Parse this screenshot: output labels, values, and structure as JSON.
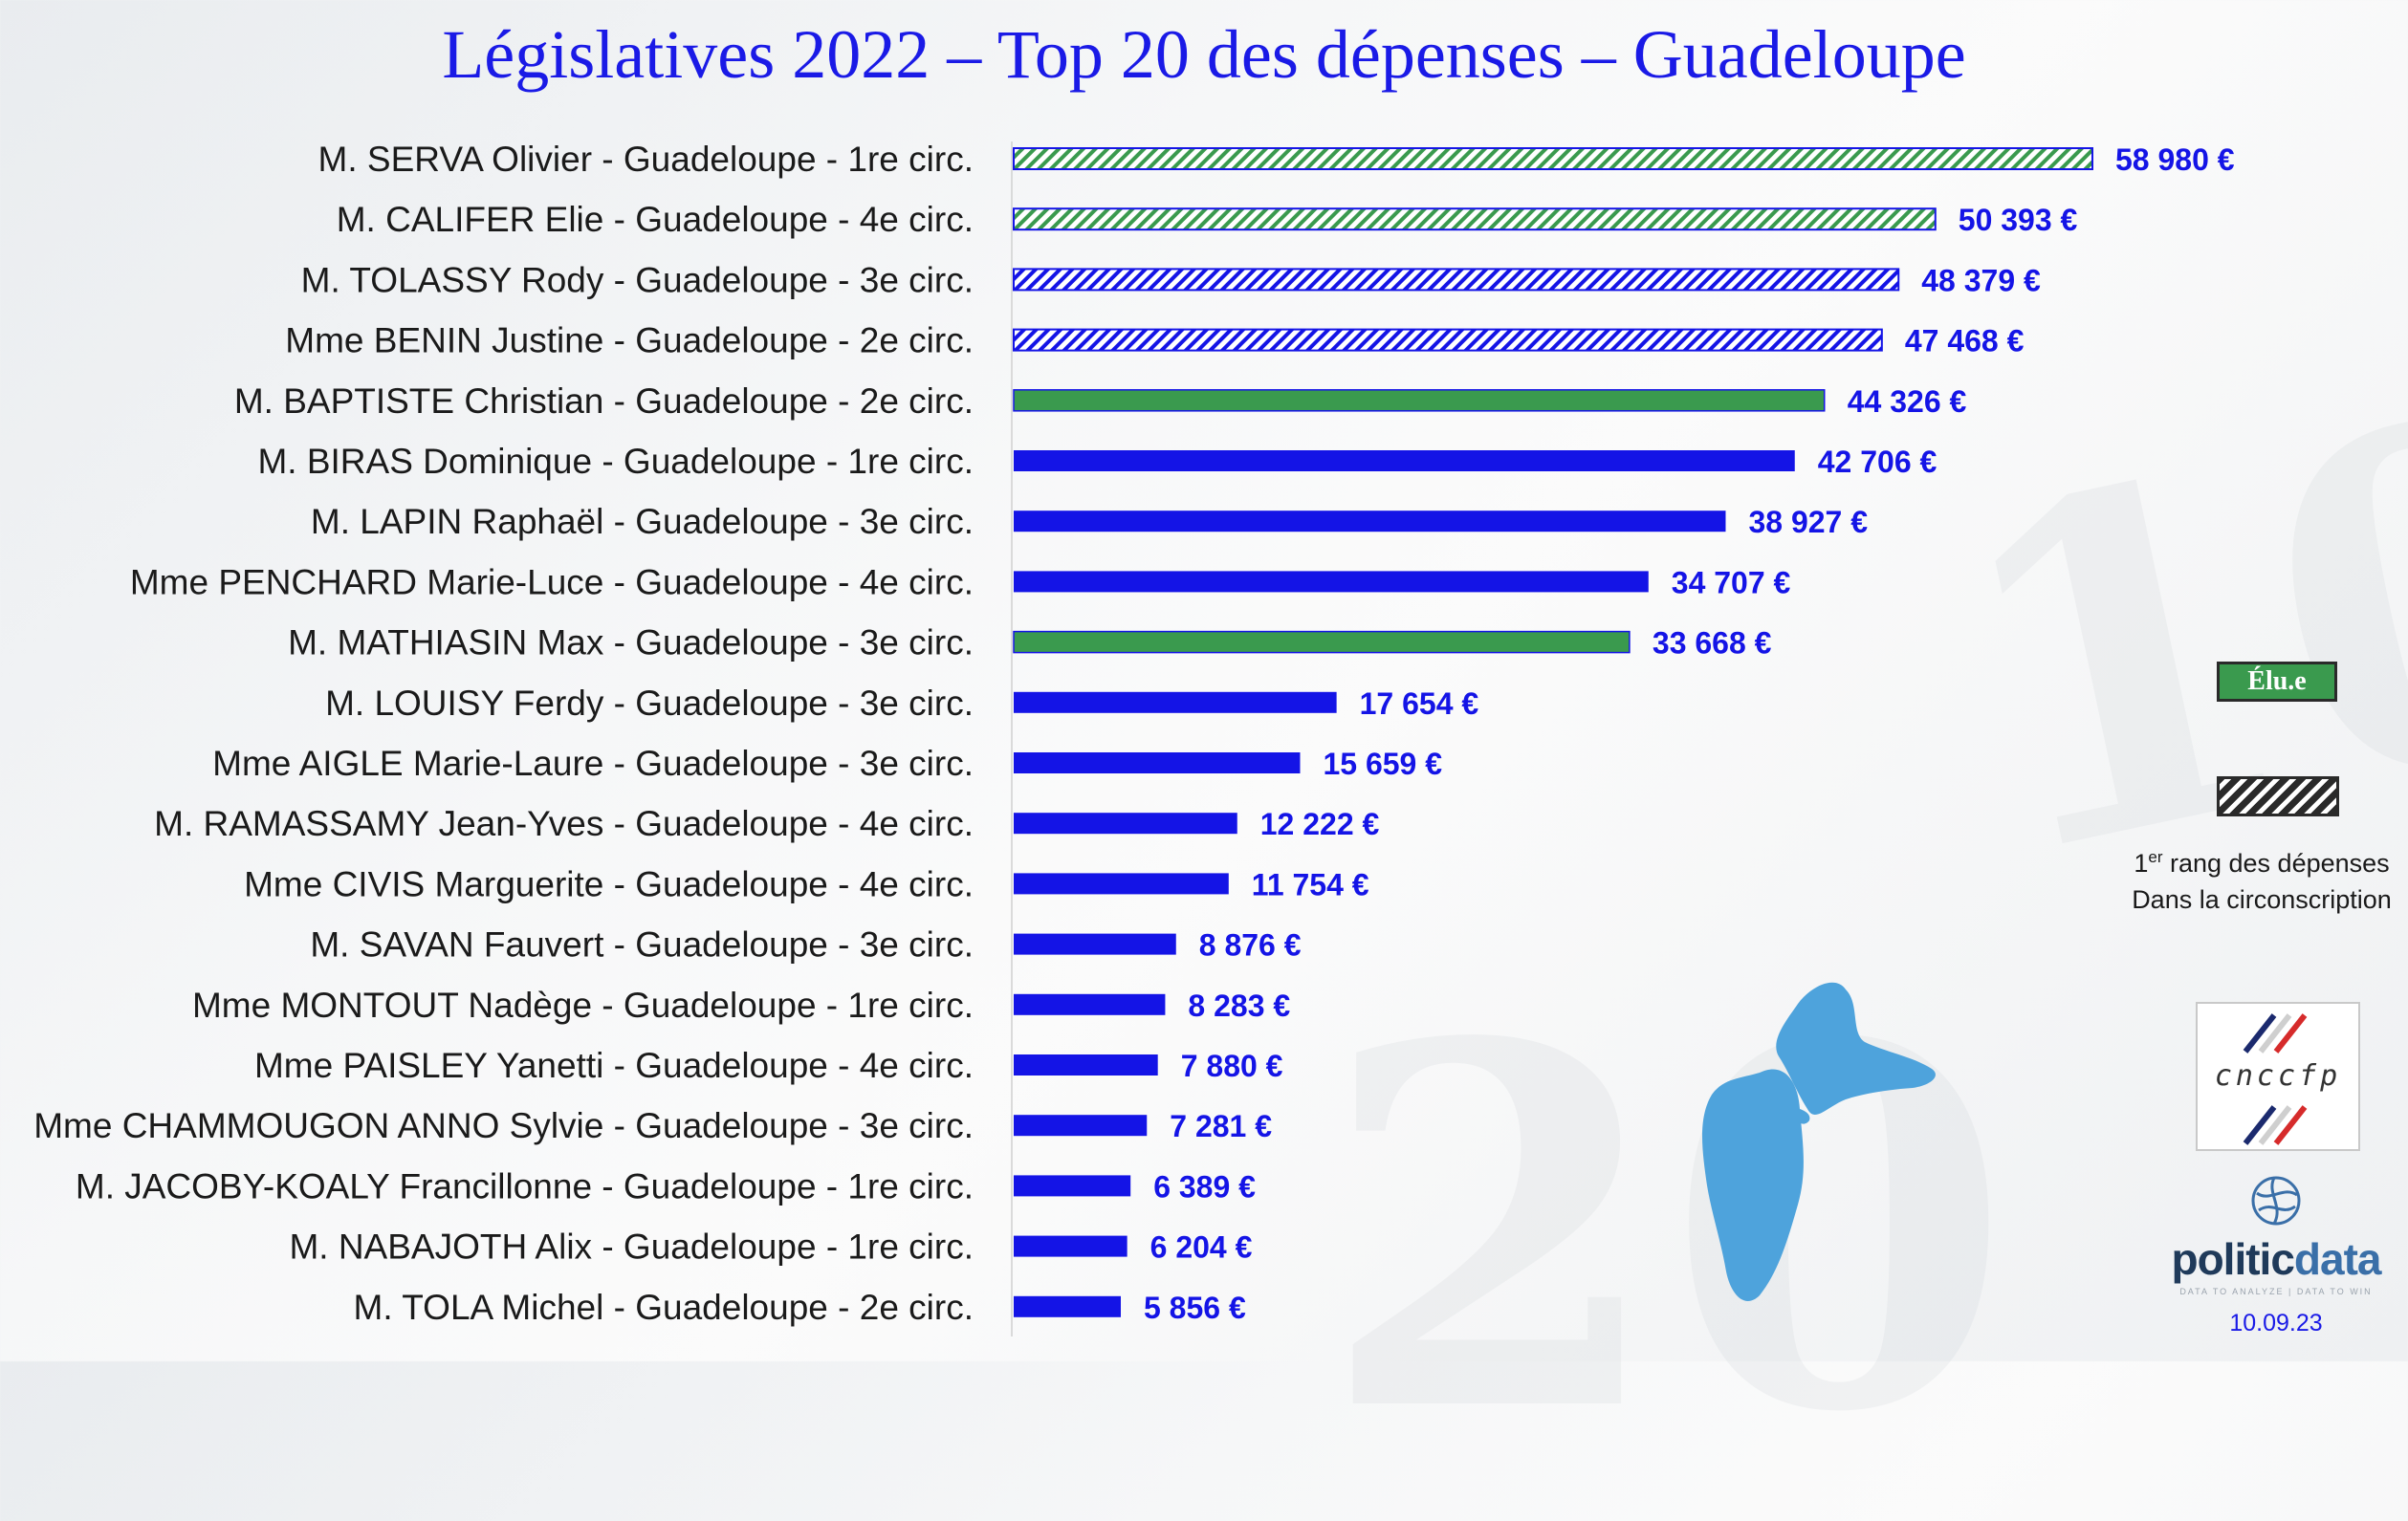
{
  "chart_data": {
    "type": "bar",
    "orientation": "horizontal",
    "title": "Législatives 2022 – Top 20 des dépenses – Guadeloupe",
    "xlim": [
      0,
      58980
    ],
    "grid": false,
    "legend_placement": "right",
    "categories": [
      "M. SERVA Olivier -  Guadeloupe - 1re circ.",
      "M. CALIFER Elie -  Guadeloupe - 4e circ.",
      "M. TOLASSY Rody -  Guadeloupe - 3e circ.",
      "Mme BENIN Justine -  Guadeloupe - 2e circ.",
      "M. BAPTISTE Christian -  Guadeloupe - 2e circ.",
      "M. BIRAS Dominique -  Guadeloupe - 1re circ.",
      "M. LAPIN Raphaël -  Guadeloupe - 3e circ.",
      "Mme PENCHARD Marie-Luce -  Guadeloupe - 4e circ.",
      "M. MATHIASIN Max -  Guadeloupe - 3e circ.",
      "M. LOUISY Ferdy -  Guadeloupe - 3e circ.",
      "Mme AIGLE Marie-Laure -  Guadeloupe - 3e circ.",
      "M. RAMASSAMY Jean-Yves -  Guadeloupe - 4e circ.",
      "Mme CIVIS Marguerite -  Guadeloupe - 4e circ.",
      "M. SAVAN Fauvert -  Guadeloupe - 3e circ.",
      "Mme MONTOUT Nadège -  Guadeloupe - 1re circ.",
      "Mme PAISLEY Yanetti -  Guadeloupe - 4e circ.",
      "Mme CHAMMOUGON ANNO Sylvie -  Guadeloupe - 3e circ.",
      "M. JACOBY-KOALY Francillonne -  Guadeloupe - 1re circ.",
      "M. NABAJOTH Alix -  Guadeloupe - 1re circ.",
      "M. TOLA Michel -  Guadeloupe - 2e circ."
    ],
    "values": [
      58980,
      50393,
      48379,
      47468,
      44326,
      42706,
      38927,
      34707,
      33668,
      17654,
      15659,
      12222,
      11754,
      8876,
      8283,
      7880,
      7281,
      6389,
      6204,
      5856
    ],
    "value_labels": [
      "58 980 €",
      "50 393 €",
      "48 379 €",
      "47 468 €",
      "44 326 €",
      "42 706 €",
      "38 927 €",
      "34 707 €",
      "33 668 €",
      "17 654 €",
      "15 659 €",
      "12 222 €",
      "11 754 €",
      "8 876 €",
      "8 283 €",
      "7 880 €",
      "7 281 €",
      "6 389 €",
      "6 204 €",
      "5 856 €"
    ],
    "elected": [
      true,
      true,
      false,
      false,
      true,
      false,
      false,
      false,
      true,
      false,
      false,
      false,
      false,
      false,
      false,
      false,
      false,
      false,
      false,
      false
    ],
    "first_in_constituency": [
      true,
      true,
      true,
      true,
      false,
      false,
      false,
      false,
      false,
      false,
      false,
      false,
      false,
      false,
      false,
      false,
      false,
      false,
      false,
      false
    ],
    "colors": {
      "default": "#1414e6",
      "elected": "#3a9a4e",
      "hatch_border": "#1414e6",
      "value_label": "#1414e6"
    },
    "legend": {
      "elected_label": "Élu.e",
      "hatch_label_line1_prefix": "1",
      "hatch_label_line1_sup": "er",
      "hatch_label_line1_rest": " rang des dépenses",
      "hatch_label_line2": "Dans la circonscription"
    }
  },
  "logos": {
    "cnccfp": "cnccfp",
    "politicdata_part1": "politic",
    "politicdata_part2": "data",
    "politicdata_tagline": "DATA TO ANALYZE | DATA TO WIN",
    "icon": "globe-icon"
  },
  "date": "10.09.23"
}
